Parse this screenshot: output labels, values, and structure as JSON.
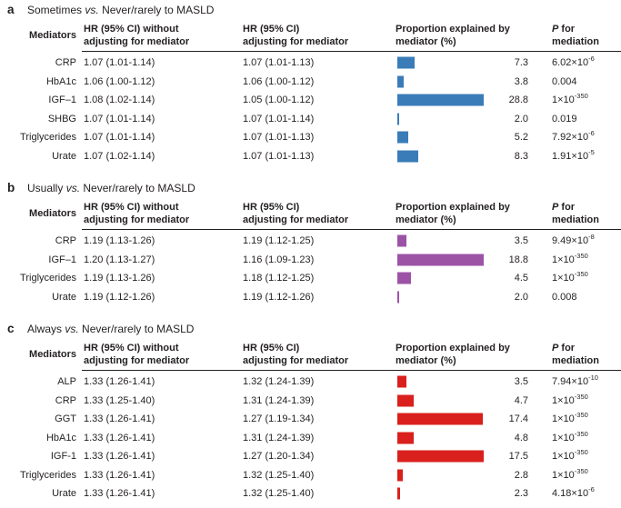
{
  "colors": {
    "text": "#231f20",
    "rule": "#231f20",
    "panel_a_bar": "#3a7cb8",
    "panel_b_bar": "#9c53a6",
    "panel_c_bar": "#d9201d"
  },
  "columns": {
    "mediators": "Mediators",
    "hr_without_line1": "HR (95% CI) without",
    "hr_without_line2": "adjusting for mediator",
    "hr_adjusting_line1": "HR (95% CI)",
    "hr_adjusting_line2": "adjusting for mediator",
    "proportion_line1": "Proportion explained by",
    "proportion_line2": "mediator (%)",
    "p_line1_italic": "P",
    "p_line1_rest": " for",
    "p_line2": "mediation"
  },
  "panels": [
    {
      "label": "a",
      "title_pre": "Sometimes",
      "title_vs": "vs.",
      "title_post": "Never/rarely to MASLD",
      "bar_color": "#3a7cb8",
      "rows": [
        {
          "mediator": "CRP",
          "hr_without": "1.07 (1.01-1.14)",
          "hr_adjusting": "1.07 (1.01-1.13)",
          "proportion": "7.3",
          "p_base": "6.02×10",
          "p_exp": "-6"
        },
        {
          "mediator": "HbA1c",
          "hr_without": "1.06 (1.00-1.12)",
          "hr_adjusting": "1.06 (1.00-1.12)",
          "proportion": "3.8",
          "p_base": "0.004",
          "p_exp": ""
        },
        {
          "mediator": "IGF–1",
          "hr_without": "1.08 (1.02-1.14)",
          "hr_adjusting": "1.05 (1.00-1.12)",
          "proportion": "28.8",
          "p_base": "1×10",
          "p_exp": "-350"
        },
        {
          "mediator": "SHBG",
          "hr_without": "1.07 (1.01-1.14)",
          "hr_adjusting": "1.07 (1.01-1.14)",
          "proportion": "2.0",
          "p_base": "0.019",
          "p_exp": ""
        },
        {
          "mediator": "Triglycerides",
          "hr_without": "1.07 (1.01-1.14)",
          "hr_adjusting": "1.07 (1.01-1.13)",
          "proportion": "5.2",
          "p_base": "7.92×10",
          "p_exp": "-6"
        },
        {
          "mediator": "Urate",
          "hr_without": "1.07 (1.02-1.14)",
          "hr_adjusting": "1.07 (1.01-1.13)",
          "proportion": "8.3",
          "p_base": "1.91×10",
          "p_exp": "-5"
        }
      ]
    },
    {
      "label": "b",
      "title_pre": "Usually",
      "title_vs": "vs.",
      "title_post": "Never/rarely to MASLD",
      "bar_color": "#9c53a6",
      "rows": [
        {
          "mediator": "CRP",
          "hr_without": "1.19 (1.13-1.26)",
          "hr_adjusting": "1.19 (1.12-1.25)",
          "proportion": "3.5",
          "p_base": "9.49×10",
          "p_exp": "-8"
        },
        {
          "mediator": "IGF–1",
          "hr_without": "1.20 (1.13-1.27)",
          "hr_adjusting": "1.16 (1.09-1.23)",
          "proportion": "18.8",
          "p_base": "1×10",
          "p_exp": "-350"
        },
        {
          "mediator": "Triglycerides",
          "hr_without": "1.19 (1.13-1.26)",
          "hr_adjusting": "1.18 (1.12-1.25)",
          "proportion": "4.5",
          "p_base": "1×10",
          "p_exp": "-350"
        },
        {
          "mediator": "Urate",
          "hr_without": "1.19 (1.12-1.26)",
          "hr_adjusting": "1.19 (1.12-1.26)",
          "proportion": "2.0",
          "p_base": "0.008",
          "p_exp": ""
        }
      ]
    },
    {
      "label": "c",
      "title_pre": "Always",
      "title_vs": "vs.",
      "title_post": "Never/rarely to MASLD",
      "bar_color": "#d9201d",
      "rows": [
        {
          "mediator": "ALP",
          "hr_without": "1.33 (1.26-1.41)",
          "hr_adjusting": "1.32 (1.24-1.39)",
          "proportion": "3.5",
          "p_base": "7.94×10",
          "p_exp": "-10"
        },
        {
          "mediator": "CRP",
          "hr_without": "1.33 (1.25-1.40)",
          "hr_adjusting": "1.31 (1.24-1.39)",
          "proportion": "4.7",
          "p_base": "1×10",
          "p_exp": "-350"
        },
        {
          "mediator": "GGT",
          "hr_without": "1.33 (1.26-1.41)",
          "hr_adjusting": "1.27 (1.19-1.34)",
          "proportion": "17.4",
          "p_base": "1×10",
          "p_exp": "-350"
        },
        {
          "mediator": "HbA1c",
          "hr_without": "1.33 (1.26-1.41)",
          "hr_adjusting": "1.31 (1.24-1.39)",
          "proportion": "4.8",
          "p_base": "1×10",
          "p_exp": "-350"
        },
        {
          "mediator": "IGF-1",
          "hr_without": "1.33 (1.26-1.41)",
          "hr_adjusting": "1.27 (1.20-1.34)",
          "proportion": "17.5",
          "p_base": "1×10",
          "p_exp": "-350"
        },
        {
          "mediator": "Triglycerides",
          "hr_without": "1.33 (1.26-1.41)",
          "hr_adjusting": "1.32 (1.25-1.40)",
          "proportion": "2.8",
          "p_base": "1×10",
          "p_exp": "-350"
        },
        {
          "mediator": "Urate",
          "hr_without": "1.33 (1.26-1.41)",
          "hr_adjusting": "1.32 (1.25-1.40)",
          "proportion": "2.3",
          "p_base": "4.18×10",
          "p_exp": "-6"
        }
      ]
    }
  ],
  "chart_data": [
    {
      "type": "bar",
      "orientation": "horizontal",
      "title": "Sometimes vs. Never/rarely to MASLD",
      "categories": [
        "CRP",
        "HbA1c",
        "IGF-1",
        "SHBG",
        "Triglycerides",
        "Urate"
      ],
      "values": [
        7.3,
        3.8,
        28.8,
        2.0,
        5.2,
        8.3
      ],
      "xlabel": "Proportion explained by mediator (%)",
      "ylabel": "Mediators",
      "bar_color": "#3a7cb8",
      "grid": false,
      "legend": false
    },
    {
      "type": "bar",
      "orientation": "horizontal",
      "title": "Usually vs. Never/rarely to MASLD",
      "categories": [
        "CRP",
        "IGF-1",
        "Triglycerides",
        "Urate"
      ],
      "values": [
        3.5,
        18.8,
        4.5,
        2.0
      ],
      "xlabel": "Proportion explained by mediator (%)",
      "ylabel": "Mediators",
      "bar_color": "#9c53a6",
      "grid": false,
      "legend": false
    },
    {
      "type": "bar",
      "orientation": "horizontal",
      "title": "Always vs. Never/rarely to MASLD",
      "categories": [
        "ALP",
        "CRP",
        "GGT",
        "HbA1c",
        "IGF-1",
        "Triglycerides",
        "Urate"
      ],
      "values": [
        3.5,
        4.7,
        17.4,
        4.8,
        17.5,
        2.8,
        2.3
      ],
      "xlabel": "Proportion explained by mediator (%)",
      "ylabel": "Mediators",
      "bar_color": "#d9201d",
      "grid": false,
      "legend": false
    }
  ]
}
